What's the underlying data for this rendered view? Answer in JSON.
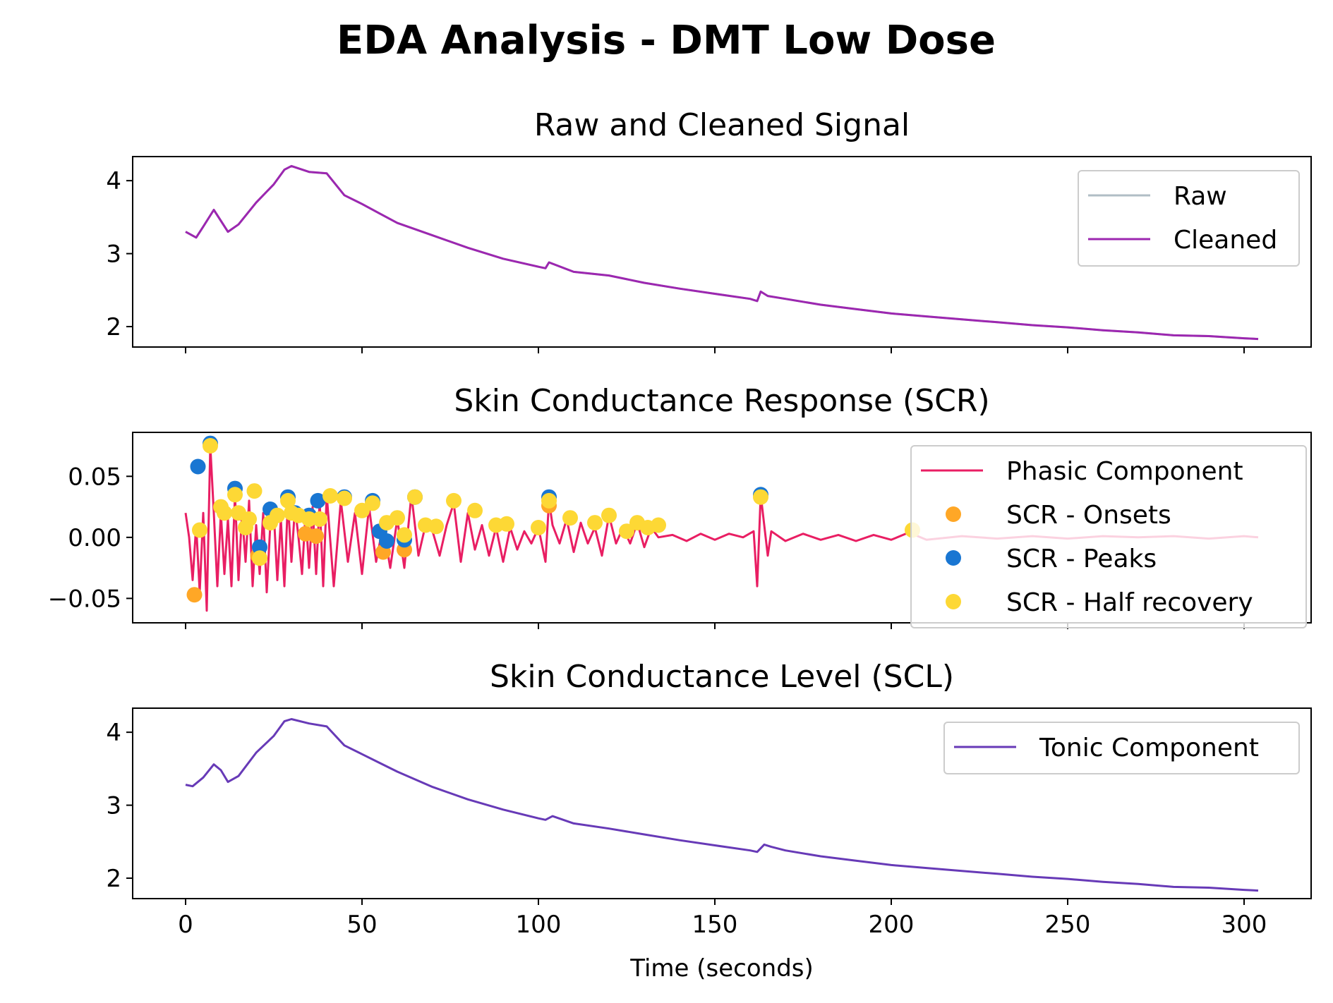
{
  "figure": {
    "title": "EDA Analysis - DMT Low Dose"
  },
  "chart_data": [
    {
      "type": "line",
      "title": "Raw and Cleaned Signal",
      "xlabel": "",
      "ylabel": "",
      "xlim": [
        -15,
        319
      ],
      "ylim": [
        1.72,
        4.33
      ],
      "xticks": [
        0,
        50,
        100,
        150,
        200,
        250,
        300
      ],
      "xtick_labels_visible": false,
      "yticks": [
        2,
        3,
        4
      ],
      "ytick_labels": [
        "2",
        "3",
        "4"
      ],
      "legend": "top-right",
      "grid": false,
      "series": [
        {
          "name": "Raw",
          "color": "#b0bec5",
          "x": [
            0,
            3,
            5,
            8,
            10,
            12,
            15,
            20,
            25,
            28,
            30,
            35,
            40,
            45,
            50,
            55,
            60,
            70,
            80,
            90,
            100,
            102,
            103,
            110,
            120,
            130,
            140,
            150,
            160,
            162,
            163,
            165,
            170,
            180,
            190,
            200,
            210,
            220,
            230,
            240,
            250,
            260,
            270,
            280,
            290,
            300,
            304
          ],
          "y": [
            3.3,
            3.22,
            3.37,
            3.6,
            3.45,
            3.3,
            3.4,
            3.7,
            3.95,
            4.15,
            4.2,
            4.12,
            4.1,
            3.8,
            3.68,
            3.55,
            3.42,
            3.25,
            3.08,
            2.93,
            2.82,
            2.8,
            2.88,
            2.75,
            2.7,
            2.6,
            2.52,
            2.45,
            2.38,
            2.35,
            2.48,
            2.42,
            2.38,
            2.3,
            2.24,
            2.18,
            2.14,
            2.1,
            2.06,
            2.02,
            1.99,
            1.95,
            1.92,
            1.88,
            1.87,
            1.84,
            1.83
          ]
        },
        {
          "name": "Cleaned",
          "color": "#9c27b0",
          "x": [
            0,
            3,
            5,
            8,
            10,
            12,
            15,
            20,
            25,
            28,
            30,
            35,
            40,
            45,
            50,
            55,
            60,
            70,
            80,
            90,
            100,
            102,
            103,
            110,
            120,
            130,
            140,
            150,
            160,
            162,
            163,
            165,
            170,
            180,
            190,
            200,
            210,
            220,
            230,
            240,
            250,
            260,
            270,
            280,
            290,
            300,
            304
          ],
          "y": [
            3.3,
            3.22,
            3.37,
            3.6,
            3.45,
            3.3,
            3.4,
            3.7,
            3.95,
            4.15,
            4.2,
            4.12,
            4.1,
            3.8,
            3.68,
            3.55,
            3.42,
            3.25,
            3.08,
            2.93,
            2.82,
            2.8,
            2.88,
            2.75,
            2.7,
            2.6,
            2.52,
            2.45,
            2.38,
            2.35,
            2.48,
            2.42,
            2.38,
            2.3,
            2.24,
            2.18,
            2.14,
            2.1,
            2.06,
            2.02,
            1.99,
            1.95,
            1.92,
            1.88,
            1.87,
            1.84,
            1.83
          ]
        }
      ]
    },
    {
      "type": "line",
      "title": "Skin Conductance Response (SCR)",
      "xlabel": "",
      "ylabel": "",
      "xlim": [
        -15,
        319
      ],
      "ylim": [
        -0.07,
        0.086
      ],
      "xticks": [
        0,
        50,
        100,
        150,
        200,
        250,
        300
      ],
      "xtick_labels_visible": false,
      "yticks": [
        -0.05,
        0.0,
        0.05
      ],
      "ytick_labels": [
        "−0.05",
        "0.00",
        "0.05"
      ],
      "legend": "top-right",
      "grid": false,
      "series": [
        {
          "name": "Phasic Component",
          "color": "#e91e63",
          "x": [
            0,
            1,
            2,
            3,
            4,
            5,
            6,
            7,
            8,
            9,
            10,
            11,
            12,
            13,
            14,
            15,
            16,
            17,
            18,
            19,
            20,
            21,
            22,
            23,
            24,
            25,
            26,
            27,
            28,
            29,
            30,
            31,
            32,
            33,
            34,
            35,
            36,
            37,
            38,
            39,
            40,
            42,
            44,
            46,
            48,
            50,
            52,
            54,
            56,
            58,
            60,
            62,
            64,
            66,
            68,
            70,
            72,
            74,
            76,
            78,
            80,
            82,
            84,
            86,
            88,
            90,
            92,
            94,
            96,
            98,
            100,
            102,
            103,
            104,
            106,
            108,
            110,
            112,
            114,
            116,
            118,
            120,
            122,
            124,
            126,
            128,
            130,
            132,
            134,
            138,
            142,
            146,
            150,
            154,
            158,
            161,
            162,
            163,
            164,
            165,
            166,
            170,
            175,
            180,
            185,
            190,
            195,
            200,
            205,
            210,
            220,
            230,
            240,
            250,
            260,
            270,
            280,
            290,
            300,
            304
          ],
          "y": [
            0.02,
            0.0,
            -0.035,
            0.01,
            -0.045,
            0.02,
            -0.06,
            0.075,
            0.02,
            -0.04,
            0.02,
            -0.03,
            0.015,
            -0.04,
            0.035,
            -0.035,
            0.02,
            -0.02,
            0.03,
            -0.04,
            0.01,
            -0.03,
            0.02,
            -0.045,
            0.01,
            0.02,
            -0.035,
            0.015,
            -0.04,
            0.03,
            -0.02,
            0.025,
            0.0,
            -0.03,
            0.02,
            -0.025,
            0.025,
            -0.03,
            0.03,
            -0.04,
            0.035,
            -0.04,
            0.03,
            -0.02,
            0.02,
            -0.03,
            0.025,
            -0.02,
            0.01,
            -0.025,
            0.015,
            -0.025,
            0.035,
            -0.015,
            0.01,
            0.005,
            -0.015,
            0.01,
            0.028,
            -0.02,
            0.02,
            -0.01,
            0.01,
            -0.015,
            0.008,
            -0.02,
            0.008,
            -0.01,
            0.005,
            -0.005,
            0.008,
            -0.02,
            0.03,
            0.01,
            -0.005,
            0.015,
            -0.012,
            0.012,
            -0.005,
            0.008,
            -0.015,
            0.018,
            -0.005,
            0.008,
            -0.005,
            0.012,
            -0.008,
            0.008,
            0.0,
            0.002,
            -0.003,
            0.003,
            -0.002,
            0.003,
            0.0,
            0.005,
            -0.04,
            0.035,
            0.01,
            -0.015,
            0.005,
            -0.003,
            0.003,
            -0.002,
            0.002,
            -0.003,
            0.002,
            -0.002,
            0.004,
            -0.002,
            0.001,
            -0.001,
            0.001,
            -0.001,
            0.001,
            0.0,
            0.001,
            -0.001,
            0.001,
            0.0
          ]
        },
        {
          "name": "SCR - Onsets",
          "color": "#ffa726",
          "x": [
            2.5,
            20.5,
            34,
            37,
            56,
            62,
            103
          ],
          "y": [
            -0.047,
            -0.015,
            0.003,
            0.001,
            -0.012,
            -0.01,
            0.026
          ]
        },
        {
          "name": "SCR - Peaks",
          "color": "#1976d2",
          "x": [
            3.5,
            7,
            14,
            21,
            24,
            29,
            31,
            35,
            37.5,
            45,
            53,
            55,
            57,
            62,
            65,
            103,
            163
          ],
          "y": [
            0.058,
            0.077,
            0.04,
            -0.008,
            0.023,
            0.033,
            0.02,
            0.018,
            0.03,
            0.033,
            0.03,
            0.005,
            -0.003,
            -0.002,
            0.033,
            0.033,
            0.035
          ]
        },
        {
          "name": "SCR - Half recovery",
          "color": "#fdd835",
          "x": [
            4,
            7,
            10,
            11,
            14,
            15,
            17,
            18,
            19.5,
            21,
            24,
            26,
            29,
            30,
            32,
            35,
            38,
            41,
            45,
            50,
            53,
            57,
            60,
            62,
            65,
            68,
            71,
            76,
            82,
            88,
            91,
            100,
            103,
            109,
            116,
            120,
            125,
            128,
            131,
            134,
            163,
            206
          ],
          "y": [
            0.006,
            0.075,
            0.025,
            0.02,
            0.035,
            0.02,
            0.008,
            0.015,
            0.038,
            -0.017,
            0.012,
            0.018,
            0.03,
            0.02,
            0.018,
            0.015,
            0.015,
            0.034,
            0.032,
            0.022,
            0.028,
            0.012,
            0.016,
            0.002,
            0.033,
            0.01,
            0.009,
            0.03,
            0.022,
            0.01,
            0.011,
            0.008,
            0.03,
            0.016,
            0.012,
            0.018,
            0.005,
            0.012,
            0.008,
            0.01,
            0.033,
            0.006
          ]
        }
      ]
    },
    {
      "type": "line",
      "title": "Skin Conductance Level (SCL)",
      "xlabel": "Time (seconds)",
      "ylabel": "",
      "xlim": [
        -15,
        319
      ],
      "ylim": [
        1.72,
        4.33
      ],
      "xticks": [
        0,
        50,
        100,
        150,
        200,
        250,
        300
      ],
      "xtick_labels": [
        "0",
        "50",
        "100",
        "150",
        "200",
        "250",
        "300"
      ],
      "yticks": [
        2,
        3,
        4
      ],
      "ytick_labels": [
        "2",
        "3",
        "4"
      ],
      "legend": "top-right",
      "grid": false,
      "series": [
        {
          "name": "Tonic Component",
          "color": "#673ab7",
          "x": [
            0,
            2,
            5,
            8,
            10,
            12,
            15,
            20,
            25,
            28,
            30,
            35,
            40,
            45,
            50,
            55,
            60,
            70,
            80,
            90,
            100,
            102,
            104,
            110,
            120,
            130,
            140,
            150,
            160,
            162,
            164,
            166,
            170,
            180,
            190,
            200,
            210,
            220,
            230,
            240,
            250,
            260,
            270,
            280,
            290,
            300,
            304
          ],
          "y": [
            3.28,
            3.26,
            3.38,
            3.56,
            3.48,
            3.32,
            3.4,
            3.72,
            3.95,
            4.15,
            4.18,
            4.12,
            4.08,
            3.82,
            3.7,
            3.58,
            3.46,
            3.25,
            3.08,
            2.94,
            2.82,
            2.8,
            2.85,
            2.75,
            2.68,
            2.6,
            2.52,
            2.45,
            2.38,
            2.36,
            2.46,
            2.43,
            2.38,
            2.3,
            2.24,
            2.18,
            2.14,
            2.1,
            2.06,
            2.02,
            1.99,
            1.95,
            1.92,
            1.88,
            1.87,
            1.84,
            1.83
          ]
        }
      ]
    }
  ]
}
